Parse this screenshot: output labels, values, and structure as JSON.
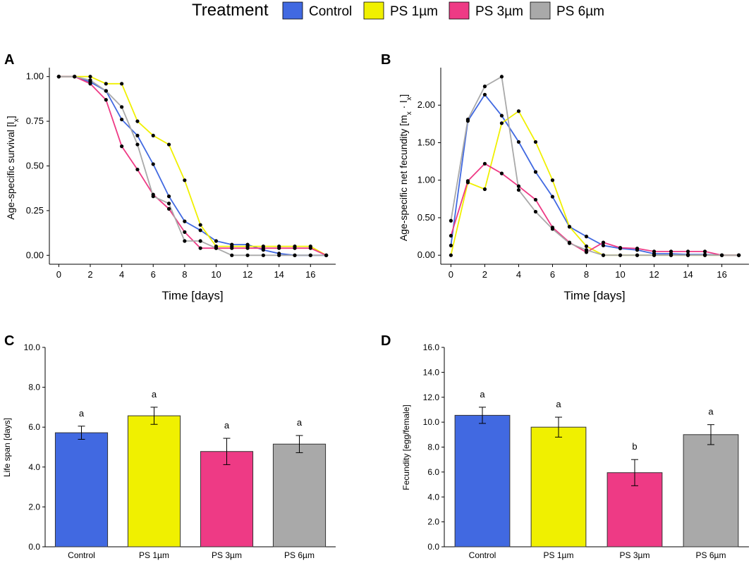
{
  "legend": {
    "title": "Treatment",
    "entries": [
      {
        "label": "Control",
        "color": "#4169E1"
      },
      {
        "label": "PS 1µm",
        "color": "#F0F000"
      },
      {
        "label": "PS 3µm",
        "color": "#EE3A85"
      },
      {
        "label": "PS 6µm",
        "color": "#A9A9A9"
      }
    ]
  },
  "chart_data": [
    {
      "panel": "A",
      "type": "line",
      "xlabel": "Time [days]",
      "ylabel": "Age-specific survival [lx]",
      "ylabel_main": "Age-specific survival [l",
      "ylabel_sub": "x",
      "ylabel_end": "]",
      "xlim": [
        -0.6,
        17.6
      ],
      "ylim": [
        -0.05,
        1.05
      ],
      "xticks": [
        0,
        2,
        4,
        6,
        8,
        10,
        12,
        14,
        16
      ],
      "yticks": [
        0.0,
        0.25,
        0.5,
        0.75,
        1.0
      ],
      "ytick_decimals": 2,
      "series": [
        {
          "name": "Control",
          "color": "#4169E1",
          "points": [
            [
              0,
              1.0
            ],
            [
              1,
              1.0
            ],
            [
              2,
              0.97
            ],
            [
              3,
              0.92
            ],
            [
              4,
              0.76
            ],
            [
              5,
              0.67
            ],
            [
              6,
              0.51
            ],
            [
              7,
              0.33
            ],
            [
              8,
              0.19
            ],
            [
              9,
              0.14
            ],
            [
              10,
              0.08
            ],
            [
              11,
              0.06
            ],
            [
              12,
              0.06
            ],
            [
              13,
              0.03
            ],
            [
              14,
              0.01
            ],
            [
              15,
              0.0
            ],
            [
              16,
              0.0
            ],
            [
              17,
              0.0
            ]
          ]
        },
        {
          "name": "PS 1µm",
          "color": "#F0F000",
          "points": [
            [
              0,
              1.0
            ],
            [
              1,
              1.0
            ],
            [
              2,
              1.0
            ],
            [
              3,
              0.96
            ],
            [
              4,
              0.96
            ],
            [
              5,
              0.75
            ],
            [
              6,
              0.67
            ],
            [
              7,
              0.62
            ],
            [
              8,
              0.42
            ],
            [
              9,
              0.17
            ],
            [
              10,
              0.05
            ],
            [
              11,
              0.05
            ],
            [
              12,
              0.05
            ],
            [
              13,
              0.05
            ],
            [
              14,
              0.05
            ],
            [
              15,
              0.05
            ],
            [
              16,
              0.05
            ],
            [
              17,
              0.0
            ]
          ]
        },
        {
          "name": "PS 3µm",
          "color": "#EE3A85",
          "points": [
            [
              0,
              1.0
            ],
            [
              1,
              1.0
            ],
            [
              2,
              0.96
            ],
            [
              3,
              0.87
            ],
            [
              4,
              0.61
            ],
            [
              5,
              0.48
            ],
            [
              6,
              0.34
            ],
            [
              7,
              0.26
            ],
            [
              8,
              0.13
            ],
            [
              9,
              0.04
            ],
            [
              10,
              0.04
            ],
            [
              11,
              0.04
            ],
            [
              12,
              0.04
            ],
            [
              13,
              0.04
            ],
            [
              14,
              0.04
            ],
            [
              15,
              0.04
            ],
            [
              16,
              0.04
            ],
            [
              17,
              0.0
            ]
          ]
        },
        {
          "name": "PS 6µm",
          "color": "#A9A9A9",
          "points": [
            [
              0,
              1.0
            ],
            [
              1,
              1.0
            ],
            [
              2,
              0.98
            ],
            [
              3,
              0.92
            ],
            [
              4,
              0.83
            ],
            [
              5,
              0.62
            ],
            [
              6,
              0.33
            ],
            [
              7,
              0.29
            ],
            [
              8,
              0.08
            ],
            [
              9,
              0.08
            ],
            [
              10,
              0.04
            ],
            [
              11,
              0.0
            ],
            [
              12,
              0.0
            ],
            [
              13,
              0.0
            ],
            [
              14,
              0.0
            ],
            [
              15,
              0.0
            ],
            [
              16,
              0.0
            ],
            [
              17,
              0.0
            ]
          ]
        }
      ]
    },
    {
      "panel": "B",
      "type": "line",
      "xlabel": "Time [days]",
      "ylabel": "Age-specific net fecundity [mx · lx]",
      "ylabel_main": "Age-specific net fecundity [m",
      "ylabel_sub": "x",
      "ylabel_mid": " · l",
      "ylabel_sub2": "x",
      "ylabel_end": "]",
      "xlim": [
        -0.6,
        17.6
      ],
      "ylim": [
        -0.12,
        2.5
      ],
      "xticks": [
        0,
        2,
        4,
        6,
        8,
        10,
        12,
        14,
        16
      ],
      "yticks": [
        0.0,
        0.5,
        1.0,
        1.5,
        2.0
      ],
      "ytick_decimals": 2,
      "series": [
        {
          "name": "Control",
          "color": "#4169E1",
          "points": [
            [
              0,
              0.13
            ],
            [
              1,
              1.79
            ],
            [
              2,
              2.14
            ],
            [
              3,
              1.86
            ],
            [
              4,
              1.51
            ],
            [
              5,
              1.11
            ],
            [
              6,
              0.78
            ],
            [
              7,
              0.38
            ],
            [
              8,
              0.25
            ],
            [
              9,
              0.13
            ],
            [
              10,
              0.09
            ],
            [
              11,
              0.07
            ],
            [
              12,
              0.02
            ],
            [
              13,
              0.02
            ],
            [
              14,
              0.01
            ],
            [
              15,
              0.01
            ],
            [
              16,
              0.0
            ],
            [
              17,
              0.0
            ]
          ]
        },
        {
          "name": "PS 1µm",
          "color": "#F0F000",
          "points": [
            [
              0,
              0.0
            ],
            [
              1,
              0.97
            ],
            [
              2,
              0.88
            ],
            [
              3,
              1.76
            ],
            [
              4,
              1.92
            ],
            [
              5,
              1.51
            ],
            [
              6,
              1.0
            ],
            [
              7,
              0.38
            ],
            [
              8,
              0.12
            ],
            [
              9,
              0.0
            ],
            [
              10,
              0.0
            ],
            [
              11,
              0.0
            ],
            [
              12,
              0.0
            ],
            [
              13,
              0.0
            ],
            [
              14,
              0.0
            ],
            [
              15,
              0.0
            ],
            [
              16,
              0.0
            ],
            [
              17,
              0.0
            ]
          ]
        },
        {
          "name": "PS 3µm",
          "color": "#EE3A85",
          "points": [
            [
              0,
              0.26
            ],
            [
              1,
              0.99
            ],
            [
              2,
              1.22
            ],
            [
              3,
              1.09
            ],
            [
              4,
              0.92
            ],
            [
              5,
              0.74
            ],
            [
              6,
              0.37
            ],
            [
              7,
              0.17
            ],
            [
              8,
              0.04
            ],
            [
              9,
              0.17
            ],
            [
              10,
              0.1
            ],
            [
              11,
              0.09
            ],
            [
              12,
              0.05
            ],
            [
              13,
              0.05
            ],
            [
              14,
              0.05
            ],
            [
              15,
              0.05
            ],
            [
              16,
              0.0
            ],
            [
              17,
              0.0
            ]
          ]
        },
        {
          "name": "PS 6µm",
          "color": "#A9A9A9",
          "points": [
            [
              0,
              0.46
            ],
            [
              1,
              1.81
            ],
            [
              2,
              2.25
            ],
            [
              3,
              2.38
            ],
            [
              4,
              0.87
            ],
            [
              5,
              0.58
            ],
            [
              6,
              0.35
            ],
            [
              7,
              0.16
            ],
            [
              8,
              0.07
            ],
            [
              9,
              0.0
            ],
            [
              10,
              0.0
            ],
            [
              11,
              0.0
            ],
            [
              12,
              0.0
            ],
            [
              13,
              0.0
            ],
            [
              14,
              0.0
            ],
            [
              15,
              0.0
            ],
            [
              16,
              0.0
            ],
            [
              17,
              0.0
            ]
          ]
        }
      ]
    },
    {
      "panel": "C",
      "type": "bar",
      "ylabel": "Life span [days]",
      "ylim": [
        0,
        10
      ],
      "yticks": [
        0,
        2,
        4,
        6,
        8,
        10
      ],
      "ytick_decimals": 1,
      "categories": [
        "Control",
        "PS 1µm",
        "PS 3µm",
        "PS 6µm"
      ],
      "values": [
        5.72,
        6.57,
        4.78,
        5.15
      ],
      "errors": [
        0.33,
        0.43,
        0.66,
        0.43
      ],
      "letters": [
        "a",
        "a",
        "a",
        "a"
      ],
      "colors": [
        "#4169E1",
        "#F0F000",
        "#EE3A85",
        "#A9A9A9"
      ]
    },
    {
      "panel": "D",
      "type": "bar",
      "ylabel": "Fecundity [egg/female]",
      "ylim": [
        0,
        16
      ],
      "yticks": [
        0,
        2,
        4,
        6,
        8,
        10,
        12,
        14,
        16
      ],
      "ytick_decimals": 1,
      "categories": [
        "Control",
        "PS 1µm",
        "PS 3µm",
        "PS 6µm"
      ],
      "values": [
        10.55,
        9.6,
        5.95,
        9.0
      ],
      "errors": [
        0.65,
        0.8,
        1.05,
        0.8
      ],
      "letters": [
        "a",
        "a",
        "b",
        "a"
      ],
      "colors": [
        "#4169E1",
        "#F0F000",
        "#EE3A85",
        "#A9A9A9"
      ]
    }
  ]
}
